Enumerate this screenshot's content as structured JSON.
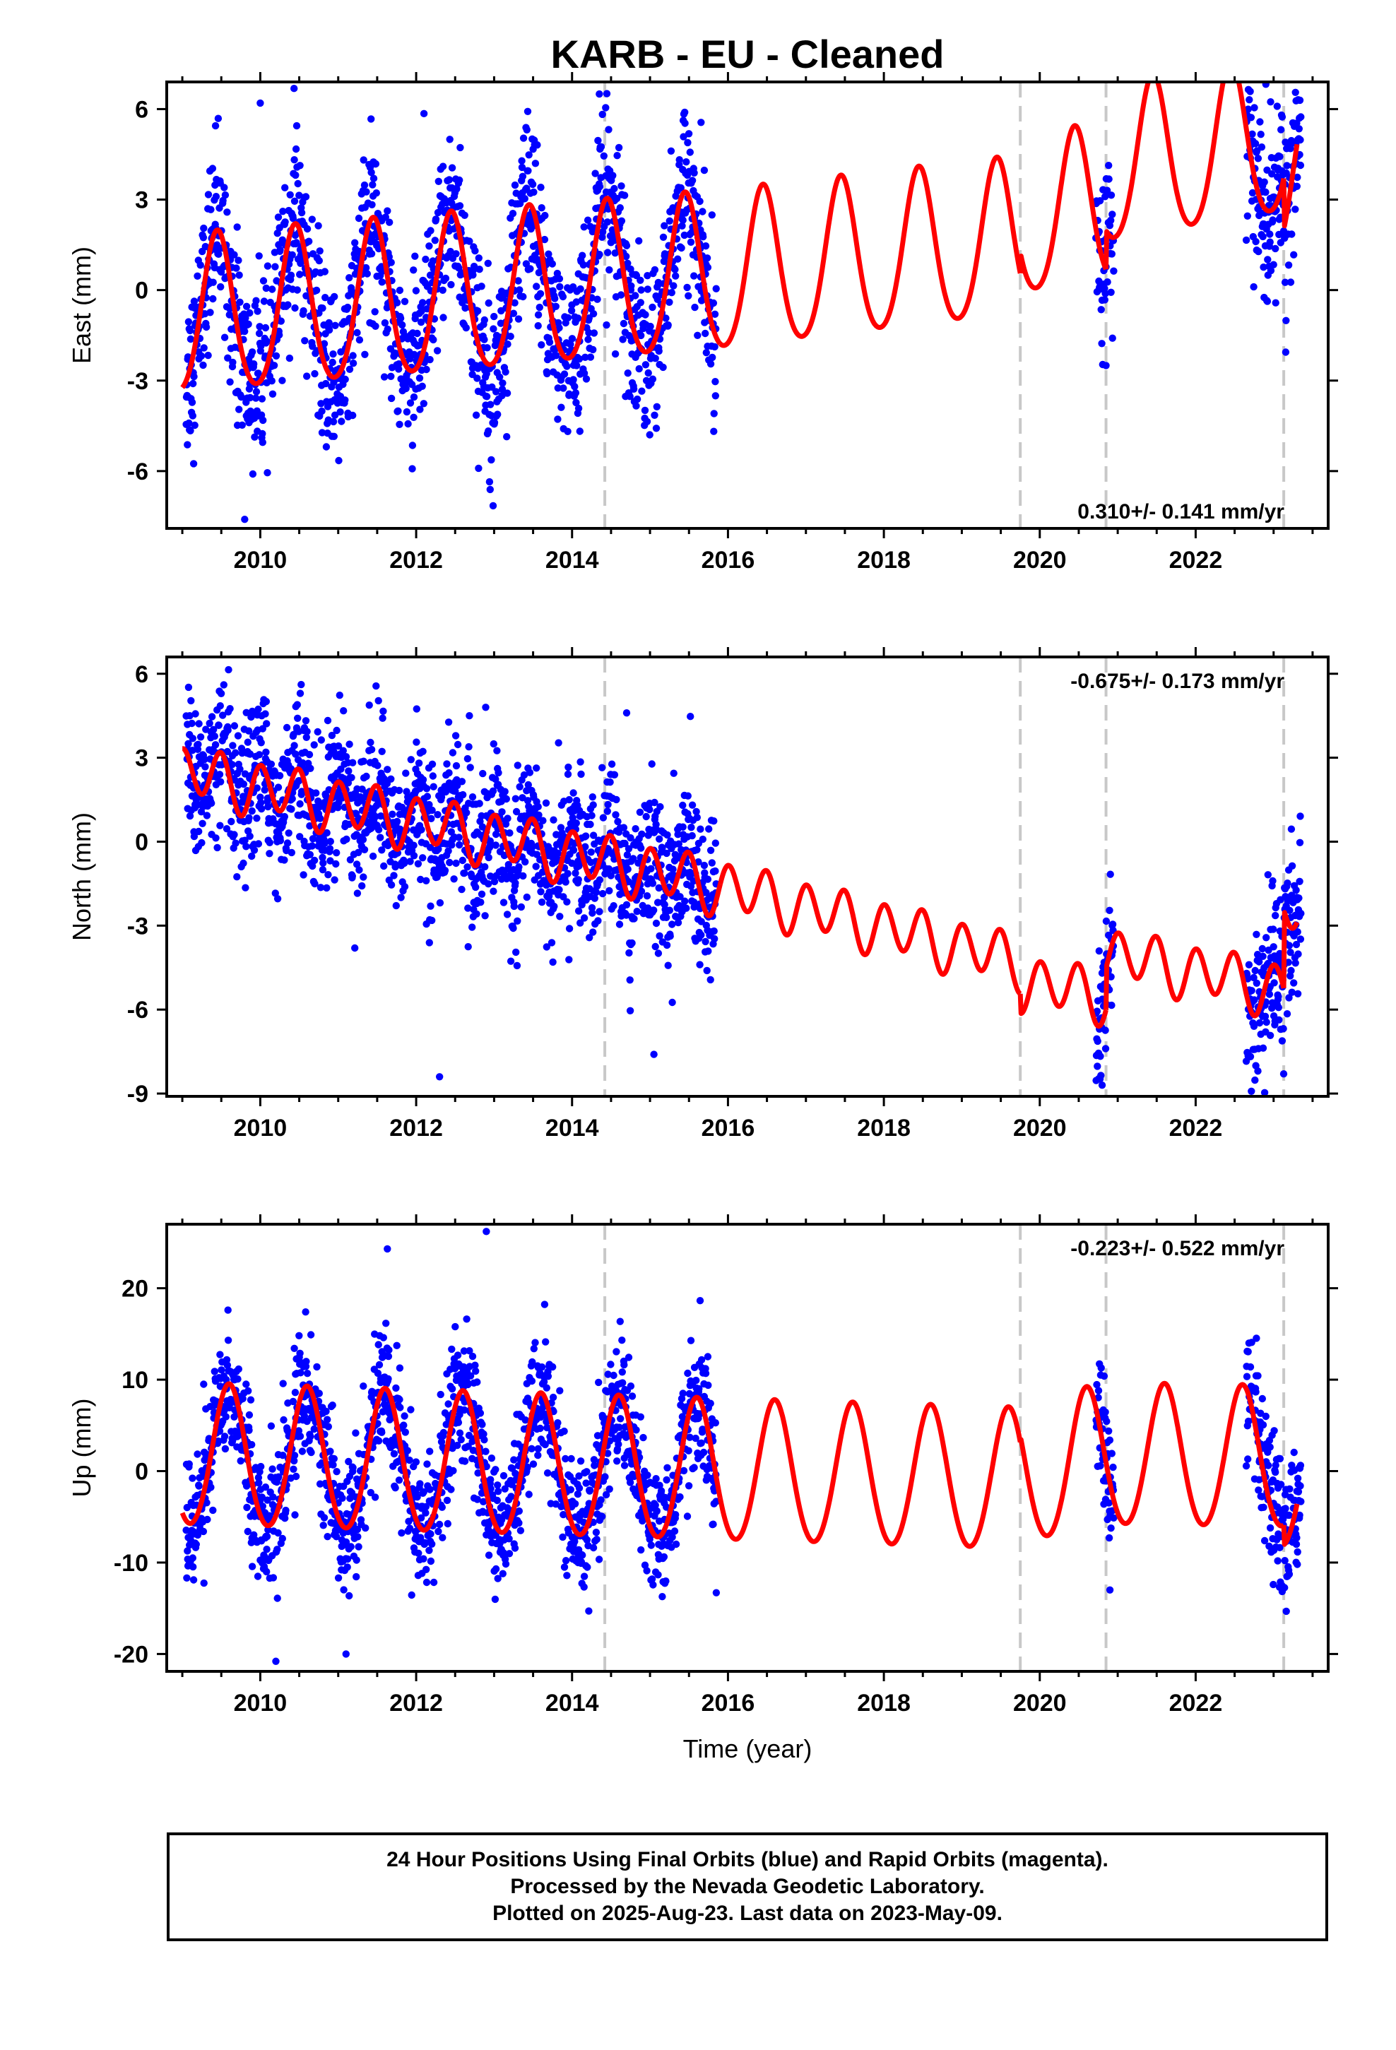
{
  "chart_data": {
    "type": "scatter",
    "title": "KARB  - EU - Cleaned",
    "footer": [
      "24 Hour Positions Using Final Orbits (blue) and Rapid Orbits (magenta).",
      "Processed by the Nevada Geodetic Laboratory.",
      "Plotted on 2025-Aug-23. Last data on 2023-May-09."
    ],
    "xlabel": "Time (year)",
    "xlim": [
      2008.8,
      2023.7
    ],
    "xticks": [
      2010,
      2012,
      2014,
      2016,
      2018,
      2020,
      2022
    ],
    "x_minor_step": 0.5,
    "grid": false,
    "colors": {
      "observations": "#0000ff",
      "model": "#ff0000",
      "offsets": "#c8c8c8",
      "frame": "#000000"
    },
    "offset_epochs": [
      2014.42,
      2019.75,
      2020.85,
      2023.13
    ],
    "data_segments": [
      [
        2009.05,
        2015.85
      ],
      [
        2020.72,
        2020.95
      ],
      [
        2022.65,
        2023.35
      ]
    ],
    "panels": [
      {
        "id": "east",
        "ylabel": "East (mm)",
        "ylim": [
          -7.9,
          6.9
        ],
        "yticks": [
          6,
          3,
          0,
          -3,
          -6
        ],
        "rate_text": "0.310+/- 0.141 mm/yr",
        "rate_position": "bottom-right",
        "model": {
          "components": [
            {
              "start": 2009.0,
              "trend_at_start": -1.0,
              "end": 2015.9,
              "trend_at_end": 0.45
            },
            {
              "start": 2015.9,
              "trend_at_start": 0.45,
              "end": 2019.75,
              "trend_at_end": 1.6
            },
            {
              "start": 2019.75,
              "trend_at_start": 2.3,
              "end": 2020.85,
              "trend_at_end": 2.7
            },
            {
              "start": 2020.85,
              "trend_at_start": 4.0,
              "end": 2023.13,
              "trend_at_end": 5.0
            },
            {
              "start": 2023.13,
              "trend_at_start": 3.3,
              "end": 2023.3,
              "trend_at_end": 3.4
            }
          ],
          "annual_amplitude": 2.6,
          "annual_peak": 2009.45,
          "semiannual_amplitude": 0.3
        },
        "scatter_sigma": 1.4,
        "outliers": [
          [
            2010.0,
            6.2
          ],
          [
            2012.1,
            5.85
          ],
          [
            2014.35,
            6.5
          ],
          [
            2020.85,
            -2.5
          ],
          [
            2009.8,
            -7.6
          ]
        ]
      },
      {
        "id": "north",
        "ylabel": "North (mm)",
        "ylim": [
          -9.1,
          6.6
        ],
        "yticks": [
          6,
          3,
          0,
          -3,
          -6,
          -9
        ],
        "rate_text": "-0.675+/- 0.173 mm/yr",
        "rate_position": "top-right",
        "model": {
          "components": [
            {
              "start": 2009.0,
              "trend_at_start": 2.5,
              "end": 2015.9,
              "trend_at_end": -1.6
            },
            {
              "start": 2015.9,
              "trend_at_start": -1.6,
              "end": 2019.75,
              "trend_at_end": -4.3
            },
            {
              "start": 2019.75,
              "trend_at_start": -5.0,
              "end": 2020.85,
              "trend_at_end": -5.5
            },
            {
              "start": 2020.85,
              "trend_at_start": -4.0,
              "end": 2023.13,
              "trend_at_end": -5.3
            },
            {
              "start": 2023.13,
              "trend_at_start": -2.5,
              "end": 2023.3,
              "trend_at_end": -2.4
            }
          ],
          "annual_amplitude": 0.25,
          "annual_peak": 2009.3,
          "semiannual_amplitude": 0.9,
          "semiannual_peak": 2009.0
        },
        "scatter_sigma": 1.3,
        "outliers": [
          [
            2012.3,
            -8.4
          ],
          [
            2015.05,
            -7.6
          ],
          [
            2020.8,
            -8.7
          ],
          [
            2014.7,
            4.6
          ]
        ]
      },
      {
        "id": "up",
        "ylabel": "Up (mm)",
        "ylim": [
          -21.9,
          27.0
        ],
        "yticks": [
          20,
          10,
          0,
          -10,
          -20
        ],
        "rate_text": "-0.223+/- 0.522 mm/yr",
        "rate_position": "top-right",
        "model": {
          "components": [
            {
              "start": 2009.0,
              "trend_at_start": 1.5,
              "end": 2015.9,
              "trend_at_end": -0.2
            },
            {
              "start": 2015.9,
              "trend_at_start": -0.2,
              "end": 2019.75,
              "trend_at_end": -1.2
            },
            {
              "start": 2019.75,
              "trend_at_start": -0.5,
              "end": 2020.85,
              "trend_at_end": 1.5
            },
            {
              "start": 2020.85,
              "trend_at_start": 1.5,
              "end": 2023.13,
              "trend_at_end": 1.2
            },
            {
              "start": 2023.13,
              "trend_at_start": -1.0,
              "end": 2023.3,
              "trend_at_end": -0.8
            }
          ],
          "annual_amplitude": 7.7,
          "annual_peak": 2009.6,
          "semiannual_amplitude": 0.5
        },
        "scatter_sigma": 3.6,
        "outliers": [
          [
            2012.9,
            26.2
          ],
          [
            2010.2,
            -20.8
          ],
          [
            2011.1,
            -20.0
          ],
          [
            2020.9,
            -13.0
          ],
          [
            2015.85,
            -13.3
          ]
        ]
      }
    ]
  }
}
